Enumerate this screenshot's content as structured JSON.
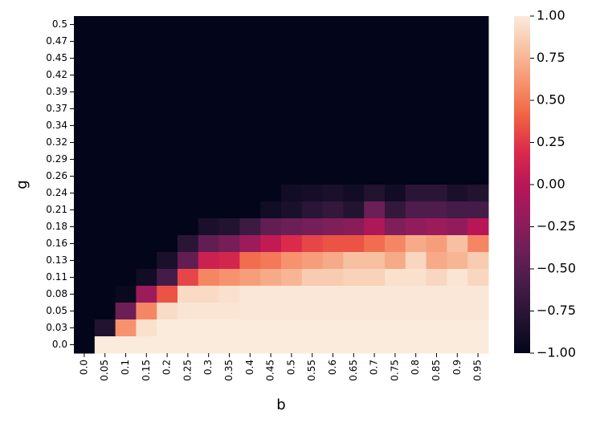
{
  "chart_data": {
    "type": "heatmap",
    "x_label": "b",
    "y_label": "g",
    "x_categories": [
      "0.0",
      "0.05",
      "0.1",
      "0.15",
      "0.2",
      "0.25",
      "0.3",
      "0.35",
      "0.4",
      "0.45",
      "0.5",
      "0.55",
      "0.6",
      "0.65",
      "0.7",
      "0.75",
      "0.8",
      "0.85",
      "0.9",
      "0.95"
    ],
    "y_categories": [
      "0.5",
      "0.47",
      "0.45",
      "0.42",
      "0.39",
      "0.37",
      "0.34",
      "0.32",
      "0.29",
      "0.26",
      "0.24",
      "0.21",
      "0.18",
      "0.16",
      "0.13",
      "0.11",
      "0.08",
      "0.05",
      "0.03",
      "0.0"
    ],
    "values": [
      [
        -1,
        -1,
        -1,
        -1,
        -1,
        -1,
        -1,
        -1,
        -1,
        -1,
        -1,
        -1,
        -1,
        -1,
        -1,
        -1,
        -1,
        -1,
        -1,
        -1
      ],
      [
        -1,
        -1,
        -1,
        -1,
        -1,
        -1,
        -1,
        -1,
        -1,
        -1,
        -1,
        -1,
        -1,
        -1,
        -1,
        -1,
        -1,
        -1,
        -1,
        -1
      ],
      [
        -1,
        -1,
        -1,
        -1,
        -1,
        -1,
        -1,
        -1,
        -1,
        -1,
        -1,
        -1,
        -1,
        -1,
        -1,
        -1,
        -1,
        -1,
        -1,
        -1
      ],
      [
        -1,
        -1,
        -1,
        -1,
        -1,
        -1,
        -1,
        -1,
        -1,
        -1,
        -1,
        -1,
        -1,
        -1,
        -1,
        -1,
        -1,
        -1,
        -1,
        -1
      ],
      [
        -1,
        -1,
        -1,
        -1,
        -1,
        -1,
        -1,
        -1,
        -1,
        -1,
        -1,
        -1,
        -1,
        -1,
        -1,
        -1,
        -1,
        -1,
        -1,
        -1
      ],
      [
        -1,
        -1,
        -1,
        -1,
        -1,
        -1,
        -1,
        -1,
        -1,
        -1,
        -1,
        -1,
        -1,
        -1,
        -1,
        -1,
        -1,
        -1,
        -1,
        -1
      ],
      [
        -1,
        -1,
        -1,
        -1,
        -1,
        -1,
        -1,
        -1,
        -1,
        -1,
        -1,
        -1,
        -1,
        -1,
        -1,
        -1,
        -1,
        -1,
        -1,
        -1
      ],
      [
        -1,
        -1,
        -1,
        -1,
        -1,
        -1,
        -1,
        -1,
        -1,
        -1,
        -1,
        -1,
        -1,
        -1,
        -1,
        -1,
        -1,
        -1,
        -1,
        -1
      ],
      [
        -1,
        -1,
        -1,
        -1,
        -1,
        -1,
        -1,
        -1,
        -1,
        -1,
        -1,
        -1,
        -1,
        -1,
        -1,
        -1,
        -1,
        -1,
        -1,
        -1
      ],
      [
        -1,
        -1,
        -1,
        -1,
        -1,
        -1,
        -1,
        -1,
        -1,
        -1,
        -1,
        -1,
        -1,
        -1,
        -1,
        -1,
        -1,
        -1,
        -1,
        -1
      ],
      [
        -1,
        -1,
        -1,
        -1,
        -1,
        -1,
        -1,
        -1,
        -1,
        -1,
        -0.9,
        -0.88,
        -0.85,
        -0.9,
        -0.8,
        -0.9,
        -0.75,
        -0.75,
        -0.85,
        -0.8
      ],
      [
        -1,
        -1,
        -1,
        -1,
        -1,
        -1,
        -1,
        -1,
        -1,
        -0.9,
        -0.85,
        -0.75,
        -0.7,
        -0.8,
        -0.4,
        -0.7,
        -0.55,
        -0.55,
        -0.6,
        -0.6
      ],
      [
        -1,
        -1,
        -1,
        -1,
        -1,
        -1,
        -0.85,
        -0.8,
        -0.65,
        -0.45,
        -0.4,
        -0.35,
        -0.3,
        -0.25,
        -0.05,
        -0.3,
        -0.2,
        -0.15,
        -0.2,
        0.0
      ],
      [
        -1,
        -1,
        -1,
        -1,
        -1,
        -0.75,
        -0.45,
        -0.35,
        -0.15,
        0.05,
        0.2,
        0.3,
        0.35,
        0.35,
        0.45,
        0.55,
        0.7,
        0.65,
        0.8,
        0.55
      ],
      [
        -1,
        -1,
        -1,
        -1,
        -0.85,
        -0.45,
        0.1,
        0.15,
        0.45,
        0.5,
        0.6,
        0.65,
        0.7,
        0.8,
        0.8,
        0.7,
        0.9,
        0.7,
        0.75,
        0.85
      ],
      [
        -1,
        -1,
        -1,
        -0.9,
        -0.6,
        0.3,
        0.55,
        0.6,
        0.65,
        0.7,
        0.75,
        0.85,
        0.85,
        0.88,
        0.88,
        0.95,
        0.95,
        0.9,
        0.97,
        0.9
      ],
      [
        -1,
        -1,
        -0.95,
        -0.15,
        0.35,
        0.92,
        0.92,
        0.95,
        0.98,
        0.98,
        0.98,
        0.98,
        0.98,
        0.98,
        0.98,
        0.98,
        0.98,
        0.98,
        0.98,
        0.98
      ],
      [
        -1,
        -1,
        -0.4,
        0.55,
        0.93,
        0.97,
        0.97,
        0.97,
        0.98,
        0.98,
        0.98,
        0.98,
        0.98,
        0.98,
        0.98,
        0.98,
        0.98,
        0.98,
        0.98,
        0.98
      ],
      [
        -1,
        -0.8,
        0.6,
        0.95,
        1,
        1,
        1,
        1,
        1,
        1,
        1,
        1,
        1,
        1,
        1,
        1,
        1,
        1,
        1,
        1
      ],
      [
        -1,
        1,
        1,
        1,
        1,
        1,
        1,
        1,
        1,
        1,
        1,
        1,
        1,
        1,
        1,
        1,
        1,
        1,
        1,
        1
      ]
    ],
    "clim": [
      -1,
      1
    ],
    "cticks": [
      {
        "value": -1,
        "label": "−1.00"
      },
      {
        "value": -0.75,
        "label": "−0.75"
      },
      {
        "value": -0.5,
        "label": "−0.50"
      },
      {
        "value": -0.25,
        "label": "−0.25"
      },
      {
        "value": 0,
        "label": "0.00"
      },
      {
        "value": 0.25,
        "label": "0.25"
      },
      {
        "value": 0.5,
        "label": "0.50"
      },
      {
        "value": 0.75,
        "label": "0.75"
      },
      {
        "value": 1,
        "label": "1.00"
      }
    ],
    "colormap": "rocket"
  }
}
